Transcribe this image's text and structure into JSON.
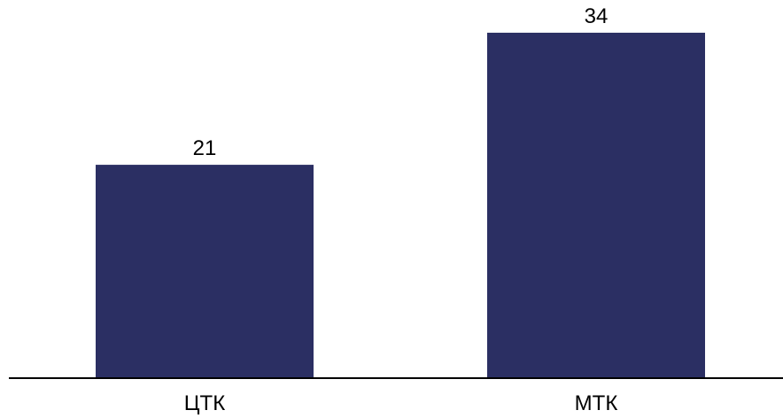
{
  "chart_data": {
    "type": "bar",
    "categories": [
      "ЦТК",
      "МТК"
    ],
    "values": [
      21,
      34
    ],
    "title": "",
    "xlabel": "",
    "ylabel": "",
    "ylim": [
      0,
      36
    ],
    "grid": false,
    "legend": "none",
    "colors": {
      "bar": "#2b2f63",
      "axis": "#000000"
    }
  }
}
